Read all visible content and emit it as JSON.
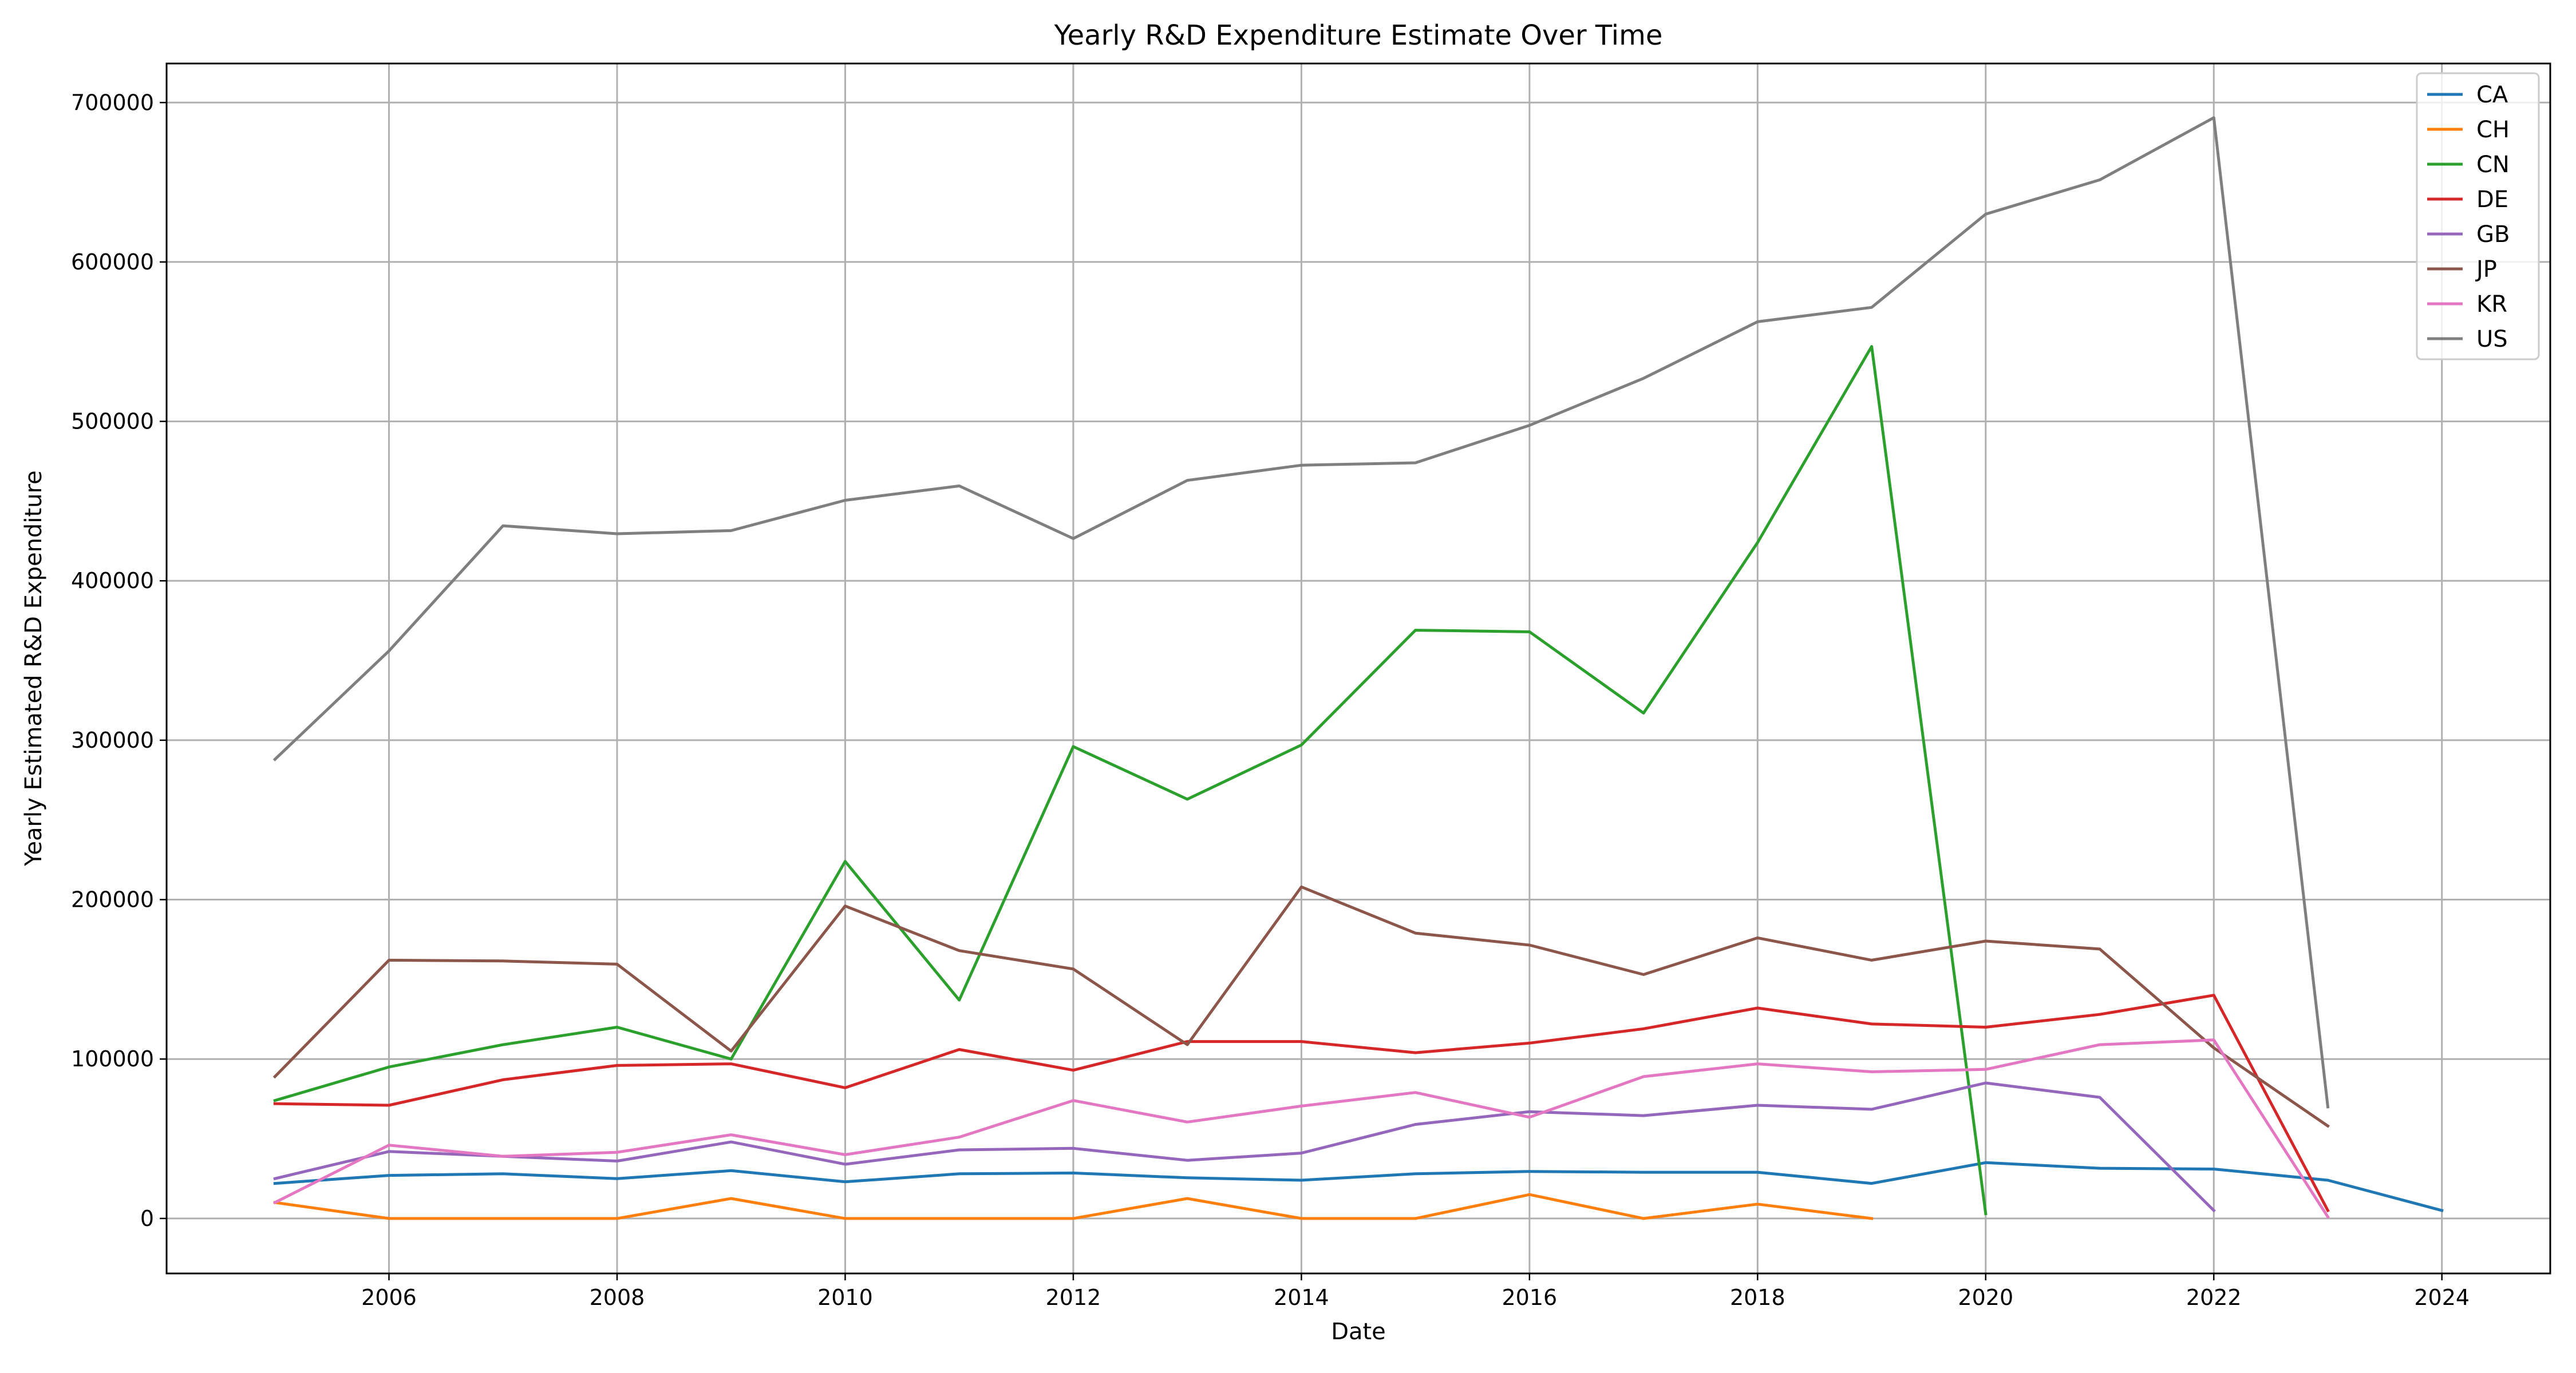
{
  "chart_data": {
    "type": "line",
    "title": "Yearly R&D Expenditure Estimate Over Time",
    "xlabel": "Date",
    "ylabel": "Yearly Estimated R&D Expenditure",
    "xlim": [
      2004.05,
      2024.95
    ],
    "ylim": [
      -34500,
      724500
    ],
    "x_ticks": [
      2006,
      2008,
      2010,
      2012,
      2014,
      2016,
      2018,
      2020,
      2022,
      2024
    ],
    "y_ticks": [
      0,
      100000,
      200000,
      300000,
      400000,
      500000,
      600000,
      700000
    ],
    "grid": true,
    "legend_position": "top-right",
    "series": [
      {
        "name": "CA",
        "color": "#1f77b4",
        "x": [
          2005,
          2006,
          2007,
          2008,
          2009,
          2010,
          2011,
          2012,
          2013,
          2014,
          2015,
          2016,
          2017,
          2018,
          2019,
          2020,
          2021,
          2022,
          2023,
          2024
        ],
        "y": [
          22000,
          27000,
          28000,
          25000,
          30000,
          23000,
          28000,
          28500,
          25500,
          24000,
          28000,
          29500,
          29000,
          29000,
          22000,
          35000,
          31500,
          31000,
          24000,
          5000
        ]
      },
      {
        "name": "CH",
        "color": "#ff7f0e",
        "x": [
          2005,
          2006,
          2007,
          2008,
          2009,
          2010,
          2011,
          2012,
          2013,
          2014,
          2015,
          2016,
          2017,
          2018,
          2019
        ],
        "y": [
          10000,
          0,
          0,
          0,
          12500,
          0,
          0,
          0,
          12500,
          0,
          0,
          15000,
          0,
          9000,
          0
        ]
      },
      {
        "name": "CN",
        "color": "#2ca02c",
        "x": [
          2005,
          2006,
          2007,
          2008,
          2009,
          2010,
          2011,
          2012,
          2013,
          2014,
          2015,
          2016,
          2017,
          2018,
          2019,
          2020
        ],
        "y": [
          74000,
          95000,
          109000,
          120000,
          100000,
          224000,
          137000,
          296000,
          263000,
          297000,
          369000,
          368000,
          317000,
          424000,
          547000,
          3000
        ]
      },
      {
        "name": "DE",
        "color": "#d62728",
        "x": [
          2005,
          2006,
          2007,
          2008,
          2009,
          2010,
          2011,
          2012,
          2013,
          2014,
          2015,
          2016,
          2017,
          2018,
          2019,
          2020,
          2021,
          2022,
          2023
        ],
        "y": [
          72000,
          71000,
          87000,
          96000,
          97000,
          82000,
          106000,
          93000,
          111000,
          111000,
          104000,
          110000,
          119000,
          132000,
          122000,
          120000,
          128000,
          140000,
          5000
        ]
      },
      {
        "name": "GB",
        "color": "#9467bd",
        "x": [
          2005,
          2006,
          2007,
          2008,
          2009,
          2010,
          2011,
          2012,
          2013,
          2014,
          2015,
          2016,
          2017,
          2018,
          2019,
          2020,
          2021,
          2022
        ],
        "y": [
          25000,
          42000,
          39000,
          36000,
          48000,
          34000,
          43000,
          44000,
          36500,
          41000,
          59000,
          67000,
          64500,
          71000,
          68500,
          85000,
          76000,
          5000
        ]
      },
      {
        "name": "JP",
        "color": "#8c564b",
        "x": [
          2005,
          2006,
          2007,
          2008,
          2009,
          2010,
          2011,
          2012,
          2013,
          2014,
          2015,
          2016,
          2017,
          2018,
          2019,
          2020,
          2021,
          2022,
          2023
        ],
        "y": [
          89000,
          162000,
          161500,
          159500,
          105000,
          196000,
          168000,
          156500,
          109000,
          208000,
          179000,
          171500,
          153000,
          176000,
          162000,
          174000,
          169000,
          107000,
          58000
        ]
      },
      {
        "name": "KR",
        "color": "#e377c2",
        "x": [
          2005,
          2006,
          2007,
          2008,
          2009,
          2010,
          2011,
          2012,
          2013,
          2014,
          2015,
          2016,
          2017,
          2018,
          2019,
          2020,
          2021,
          2022,
          2023
        ],
        "y": [
          10000,
          46000,
          39000,
          41500,
          52500,
          40000,
          51000,
          74000,
          60500,
          70500,
          79000,
          63500,
          89000,
          97000,
          92000,
          93500,
          109000,
          112000,
          1000
        ]
      },
      {
        "name": "US",
        "color": "#7f7f7f",
        "x": [
          2005,
          2006,
          2007,
          2008,
          2009,
          2010,
          2011,
          2012,
          2013,
          2014,
          2015,
          2016,
          2017,
          2018,
          2019,
          2020,
          2021,
          2022,
          2023
        ],
        "y": [
          288000,
          356000,
          434500,
          429500,
          431500,
          450500,
          459500,
          426500,
          463000,
          472500,
          474000,
          497500,
          527000,
          562500,
          571500,
          630000,
          651500,
          690500,
          70000
        ]
      }
    ]
  }
}
